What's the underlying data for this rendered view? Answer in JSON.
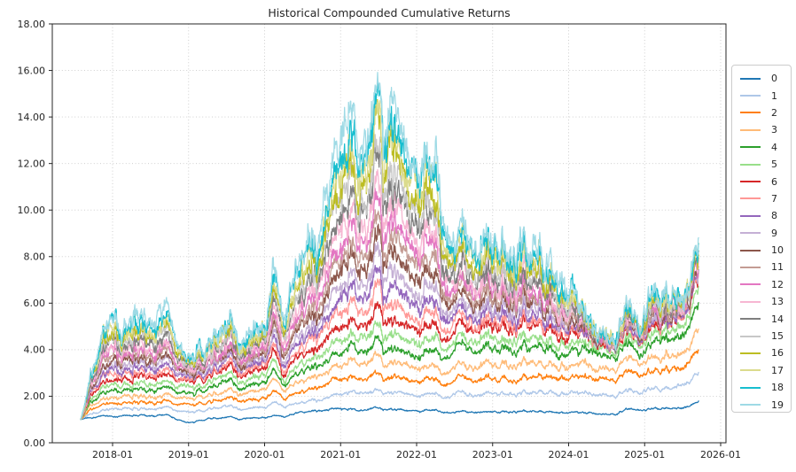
{
  "chart_data": {
    "type": "line",
    "title": "Historical Compounded Cumulative Returns",
    "xlabel": "",
    "ylabel": "",
    "ylim": [
      0,
      18
    ],
    "grid": true,
    "legend_position": "right-outside",
    "background": "#ffffff",
    "yticks": {
      "values": [
        0,
        2,
        4,
        6,
        8,
        10,
        12,
        14,
        16,
        18
      ],
      "labels": [
        "0.00",
        "2.00",
        "4.00",
        "6.00",
        "8.00",
        "10.00",
        "12.00",
        "14.00",
        "16.00",
        "18.00"
      ]
    },
    "xticks": {
      "years": [
        2018,
        2019,
        2020,
        2021,
        2022,
        2023,
        2024,
        2025,
        2026
      ],
      "labels": [
        "2018-01",
        "2019-01",
        "2020-01",
        "2021-01",
        "2022-01",
        "2023-01",
        "2024-01",
        "2025-01",
        "2026-01"
      ]
    },
    "x_range": [
      2017.58,
      2025.71
    ],
    "knots_t": [
      2017.58,
      2017.71,
      2017.87,
      2018.04,
      2018.12,
      2018.29,
      2018.54,
      2018.71,
      2019.0,
      2019.25,
      2019.5,
      2019.75,
      2020.0,
      2020.12,
      2020.23,
      2020.42,
      2020.58,
      2020.69,
      2020.81,
      2020.92,
      2021.08,
      2021.15,
      2021.32,
      2021.5,
      2021.57,
      2021.65,
      2021.8,
      2021.92,
      2022.04,
      2022.2,
      2022.37,
      2022.53,
      2022.62,
      2022.79,
      2023.04,
      2023.29,
      2023.54,
      2023.79,
      2024.04,
      2024.21,
      2024.46,
      2024.62,
      2024.76,
      2024.92,
      2025.1,
      2025.22,
      2025.37,
      2025.5,
      2025.71
    ],
    "series": [
      {
        "name": "0",
        "color": "#1f77b4",
        "values": [
          1.0,
          1.12,
          1.2,
          1.15,
          1.18,
          1.2,
          1.12,
          1.15,
          0.85,
          1.02,
          1.1,
          1.03,
          1.1,
          1.15,
          1.1,
          1.25,
          1.35,
          1.33,
          1.38,
          1.4,
          1.43,
          1.45,
          1.4,
          1.48,
          1.4,
          1.45,
          1.42,
          1.38,
          1.35,
          1.38,
          1.3,
          1.34,
          1.38,
          1.3,
          1.35,
          1.33,
          1.35,
          1.3,
          1.3,
          1.28,
          1.25,
          1.25,
          1.5,
          1.45,
          1.5,
          1.45,
          1.5,
          1.52,
          1.7
        ]
      },
      {
        "name": "1",
        "color": "#aec7e8",
        "values": [
          1.0,
          1.3,
          1.45,
          1.53,
          1.48,
          1.5,
          1.4,
          1.45,
          1.3,
          1.43,
          1.55,
          1.45,
          1.55,
          1.7,
          1.55,
          1.6,
          1.8,
          1.75,
          1.85,
          1.95,
          2.1,
          2.2,
          2.05,
          2.25,
          2.1,
          2.2,
          2.15,
          2.05,
          2.0,
          2.1,
          1.95,
          2.18,
          2.2,
          2.05,
          2.15,
          2.1,
          2.15,
          2.1,
          2.1,
          2.1,
          2.1,
          2.05,
          2.4,
          2.25,
          2.4,
          2.3,
          2.45,
          2.5,
          2.85
        ]
      },
      {
        "name": "2",
        "color": "#ff7f0e",
        "values": [
          1.0,
          1.5,
          1.72,
          1.8,
          1.73,
          1.78,
          1.63,
          1.7,
          1.6,
          1.73,
          1.9,
          1.8,
          1.95,
          2.2,
          1.9,
          2.0,
          2.3,
          2.25,
          2.4,
          2.55,
          2.7,
          2.9,
          2.65,
          3.0,
          2.7,
          2.9,
          2.8,
          2.65,
          2.6,
          2.7,
          2.5,
          2.83,
          2.9,
          2.65,
          2.8,
          2.7,
          2.8,
          2.75,
          2.75,
          2.75,
          2.8,
          2.75,
          3.3,
          3.0,
          3.2,
          3.05,
          3.25,
          3.3,
          3.75
        ]
      },
      {
        "name": "3",
        "color": "#ffbb78",
        "values": [
          1.0,
          1.68,
          1.98,
          2.07,
          2.0,
          2.05,
          1.88,
          1.95,
          1.87,
          2.02,
          2.25,
          2.1,
          2.3,
          2.7,
          2.2,
          2.4,
          2.75,
          2.7,
          2.9,
          3.1,
          3.3,
          3.6,
          3.25,
          3.7,
          3.3,
          3.55,
          3.4,
          3.25,
          3.15,
          3.3,
          3.0,
          3.4,
          3.5,
          3.2,
          3.4,
          3.3,
          3.4,
          3.3,
          3.25,
          3.3,
          3.3,
          3.25,
          3.9,
          3.55,
          3.8,
          3.6,
          3.9,
          4.0,
          4.65
        ]
      },
      {
        "name": "4",
        "color": "#2ca02c",
        "values": [
          1.0,
          1.85,
          2.25,
          2.4,
          2.28,
          2.35,
          2.13,
          2.22,
          2.1,
          2.3,
          2.6,
          2.4,
          2.65,
          3.1,
          2.45,
          2.75,
          3.2,
          3.1,
          3.35,
          3.6,
          3.85,
          4.2,
          3.8,
          4.3,
          3.85,
          4.15,
          4.0,
          3.8,
          3.7,
          3.9,
          3.6,
          4.2,
          4.3,
          3.9,
          4.1,
          4.0,
          4.1,
          3.85,
          3.85,
          3.9,
          3.85,
          3.8,
          4.55,
          4.0,
          4.5,
          4.3,
          4.7,
          4.8,
          5.6
        ]
      },
      {
        "name": "5",
        "color": "#98df8a",
        "values": [
          1.0,
          2.0,
          2.5,
          2.64,
          2.5,
          2.6,
          2.35,
          2.45,
          2.35,
          2.55,
          2.9,
          2.65,
          2.95,
          3.5,
          2.65,
          3.05,
          3.55,
          3.45,
          3.75,
          4.05,
          4.35,
          4.8,
          4.3,
          4.95,
          4.4,
          4.75,
          4.55,
          4.35,
          4.2,
          4.4,
          4.0,
          4.6,
          4.7,
          4.3,
          4.55,
          4.4,
          4.5,
          4.2,
          4.2,
          4.2,
          4.1,
          4.05,
          4.9,
          4.3,
          4.9,
          4.6,
          5.1,
          5.2,
          6.2
        ]
      },
      {
        "name": "6",
        "color": "#d62728",
        "values": [
          1.0,
          2.2,
          2.78,
          2.95,
          2.8,
          2.9,
          2.6,
          2.7,
          2.57,
          2.85,
          3.2,
          2.95,
          3.3,
          3.9,
          2.9,
          3.4,
          3.95,
          3.85,
          4.2,
          4.5,
          4.9,
          5.4,
          4.85,
          5.75,
          5.0,
          5.4,
          5.1,
          4.85,
          4.7,
          4.95,
          4.5,
          5.13,
          5.3,
          4.8,
          5.1,
          4.9,
          5.0,
          4.6,
          4.6,
          4.5,
          4.35,
          4.3,
          5.25,
          4.55,
          5.3,
          4.9,
          5.45,
          5.5,
          6.6
        ]
      },
      {
        "name": "7",
        "color": "#ff9896",
        "interp": {
          "lower": "6",
          "upper": "19",
          "frac": 0.077
        }
      },
      {
        "name": "8",
        "color": "#9467bd",
        "interp": {
          "lower": "6",
          "upper": "19",
          "frac": 0.154
        }
      },
      {
        "name": "9",
        "color": "#c5b0d5",
        "interp": {
          "lower": "6",
          "upper": "19",
          "frac": 0.231
        }
      },
      {
        "name": "10",
        "color": "#8c564b",
        "interp": {
          "lower": "6",
          "upper": "19",
          "frac": 0.308
        }
      },
      {
        "name": "11",
        "color": "#c49c94",
        "interp": {
          "lower": "6",
          "upper": "19",
          "frac": 0.385
        }
      },
      {
        "name": "12",
        "color": "#e377c2",
        "interp": {
          "lower": "6",
          "upper": "19",
          "frac": 0.462
        }
      },
      {
        "name": "13",
        "color": "#f7b6d2",
        "interp": {
          "lower": "6",
          "upper": "19",
          "frac": 0.538
        }
      },
      {
        "name": "14",
        "color": "#7f7f7f",
        "interp": {
          "lower": "6",
          "upper": "19",
          "frac": 0.615
        }
      },
      {
        "name": "15",
        "color": "#c7c7c7",
        "interp": {
          "lower": "6",
          "upper": "19",
          "frac": 0.692
        }
      },
      {
        "name": "16",
        "color": "#bcbd22",
        "interp": {
          "lower": "6",
          "upper": "19",
          "frac": 0.769
        }
      },
      {
        "name": "17",
        "color": "#dbdb8d",
        "interp": {
          "lower": "6",
          "upper": "19",
          "frac": 0.846
        }
      },
      {
        "name": "18",
        "color": "#17becf",
        "interp": {
          "lower": "6",
          "upper": "19",
          "frac": 0.923
        }
      },
      {
        "name": "19",
        "color": "#9edae5",
        "values": [
          1.0,
          3.4,
          5.2,
          6.2,
          4.9,
          5.7,
          4.6,
          5.1,
          3.5,
          4.3,
          5.0,
          4.4,
          5.3,
          7.3,
          5.4,
          6.6,
          8.6,
          7.8,
          9.6,
          10.9,
          12.8,
          13.8,
          11.6,
          15.7,
          12.7,
          15.1,
          13.6,
          12.2,
          11.9,
          12.3,
          9.7,
          8.8,
          10.0,
          8.3,
          8.7,
          8.0,
          8.2,
          7.0,
          6.4,
          5.3,
          4.75,
          4.7,
          6.6,
          5.4,
          6.9,
          6.0,
          6.8,
          6.6,
          7.5
        ]
      }
    ]
  }
}
